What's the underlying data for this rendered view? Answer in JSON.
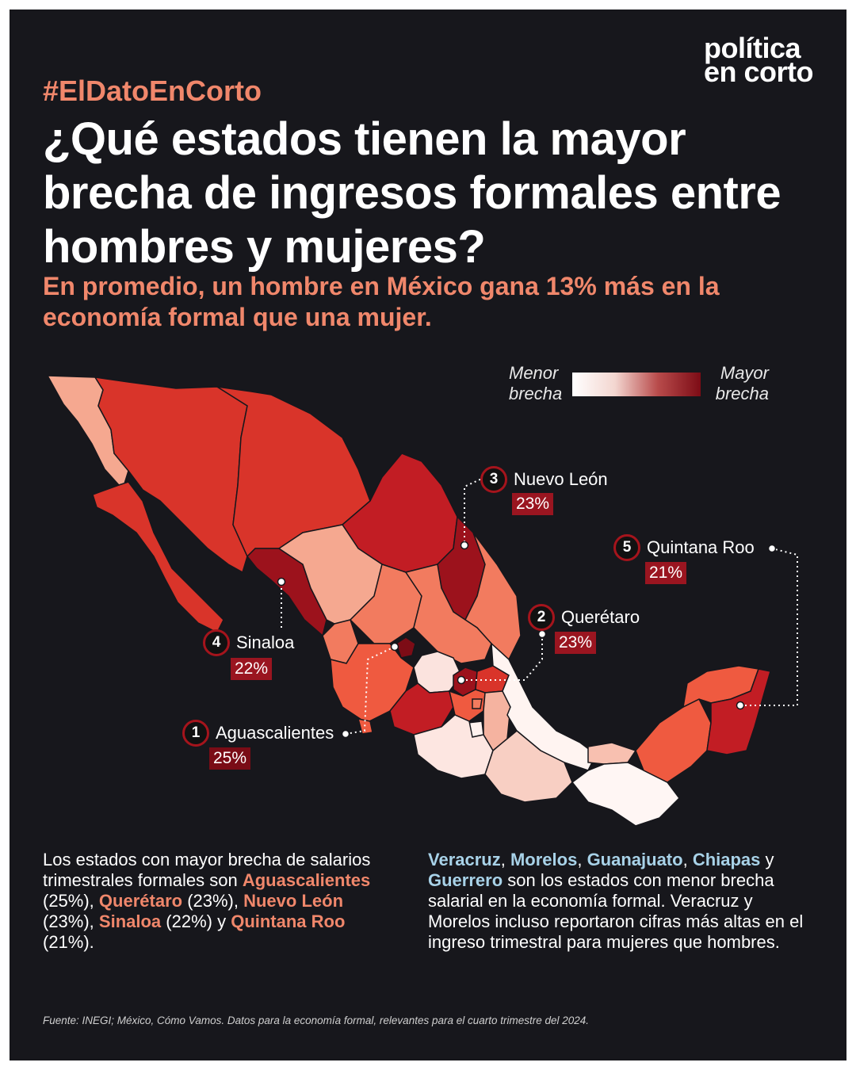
{
  "brand": {
    "line1": "política",
    "line2": "en corto"
  },
  "hashtag": "#ElDatoEnCorto",
  "title": "¿Qué estados tienen la mayor brecha de ingresos formales entre hombres y mujeres?",
  "subtitle": "En promedio, un hombre en México gana 13% más en la economía formal que una mujer.",
  "legend": {
    "low_line1": "Menor",
    "low_line2": "brecha",
    "high_line1": "Mayor",
    "high_line2": "brecha",
    "colors": [
      "#ffffff",
      "#f3d6d0",
      "#b84b4b",
      "#7d0c16"
    ]
  },
  "callouts": [
    {
      "rank": "1",
      "state": "Aguascalientes",
      "value": "25%"
    },
    {
      "rank": "2",
      "state": "Querétaro",
      "value": "23%"
    },
    {
      "rank": "3",
      "state": "Nuevo León",
      "value": "23%"
    },
    {
      "rank": "4",
      "state": "Sinaloa",
      "value": "22%"
    },
    {
      "rank": "5",
      "state": "Quintana Roo",
      "value": "21%"
    }
  ],
  "left_text": {
    "p1": "Los estados con mayor brecha de salarios trimestrales formales son ",
    "s1": "Aguascalientes",
    "v1": " (25%), ",
    "s2": "Querétaro",
    "v2": " (23%), ",
    "s3": "Nuevo León",
    "v3": " (23%), ",
    "s4": "Sinaloa",
    "v4": " (22%) y ",
    "s5": "Quintana Roo",
    "v5": " (21%)."
  },
  "right_text": {
    "s1": "Veracruz",
    "c1": ", ",
    "s2": "Morelos",
    "c2": ", ",
    "s3": "Guanajuato",
    "c3": ", ",
    "s4": "Chiapas",
    "c4": " y ",
    "s5": "Guerrero",
    "rest": " son los estados con menor brecha salarial en la economía formal. Veracruz y Morelos incluso reportaron cifras más altas en el ingreso trimestral para mujeres que hombres."
  },
  "source": "Fuente: INEGI; México, Cómo Vamos. Datos para la economía formal, relevantes para el cuarto trimestre del 2024."
}
